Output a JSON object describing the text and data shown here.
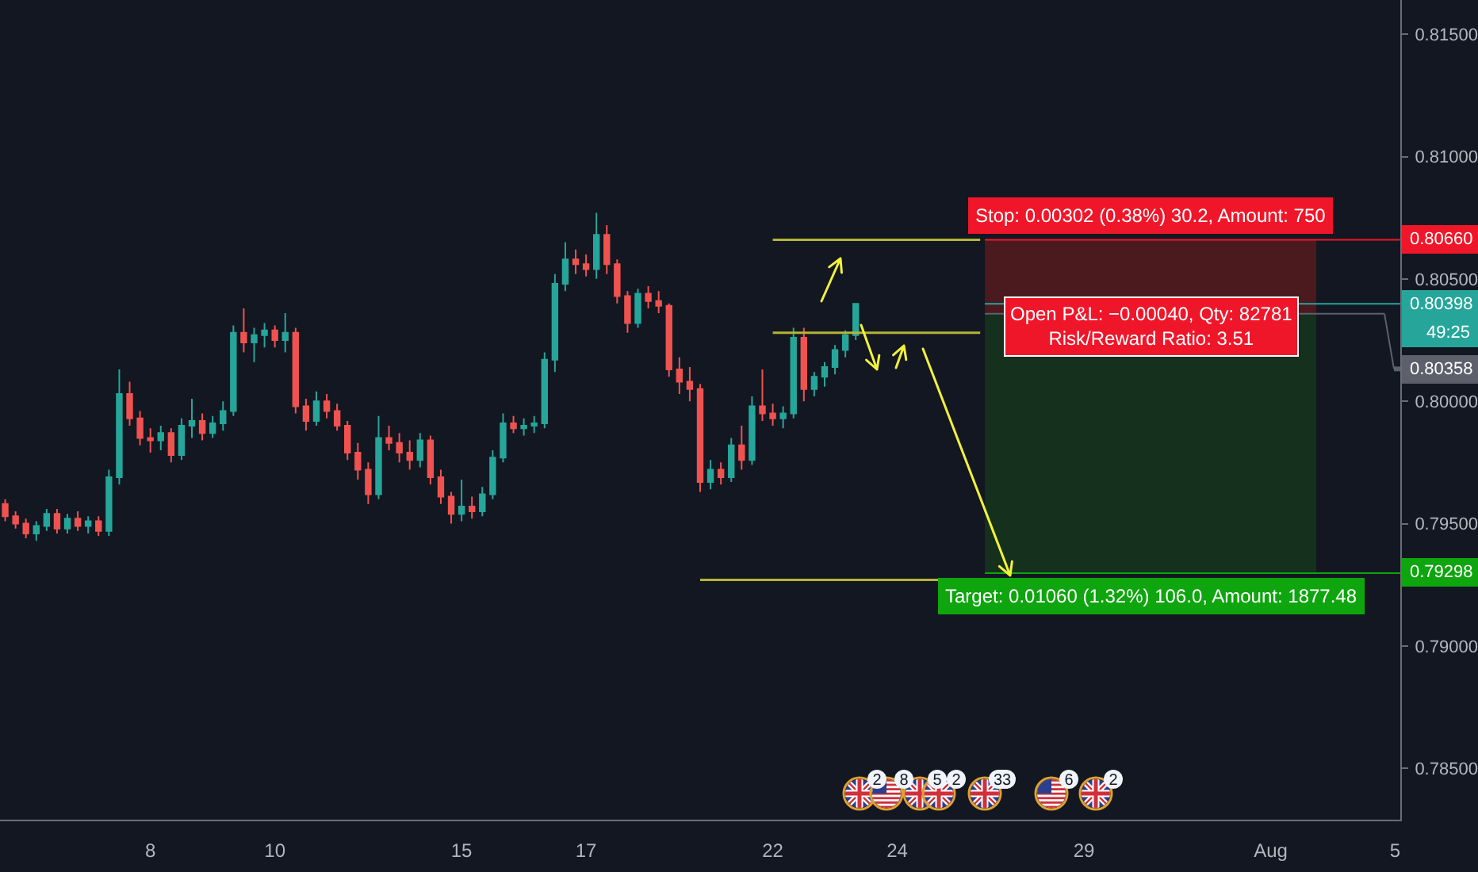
{
  "chart_data": {
    "type": "candlestick",
    "categories": [
      null,
      null,
      null,
      null,
      null,
      null,
      null,
      null,
      null,
      null,
      null,
      null,
      null,
      null,
      "8",
      null,
      null,
      null,
      null,
      null,
      null,
      null,
      null,
      null,
      null,
      null,
      "10",
      null,
      null,
      null,
      null,
      null,
      null,
      null,
      null,
      null,
      null,
      null,
      null,
      null,
      null,
      null,
      null,
      null,
      "15",
      null,
      null,
      null,
      null,
      null,
      null,
      null,
      null,
      null,
      null,
      null,
      "17",
      null,
      null,
      null,
      null,
      null,
      null,
      null,
      null,
      null,
      null,
      null,
      null,
      null,
      null,
      null,
      null,
      null,
      "22",
      null,
      null,
      null,
      null,
      null,
      null,
      null,
      null,
      null,
      null,
      null,
      "24",
      null,
      null,
      null,
      null,
      null,
      null,
      null,
      null,
      null,
      null,
      null,
      null,
      null,
      null,
      null,
      null,
      null,
      "29",
      null,
      null,
      null,
      null,
      null,
      null,
      null,
      null,
      null,
      null,
      null,
      null,
      null,
      null,
      null,
      null,
      null,
      "Aug",
      null,
      null,
      null,
      null,
      null,
      null,
      null,
      null,
      null,
      null,
      null,
      "5"
    ],
    "ohlc": [
      [
        0.7958,
        0.796,
        0.7951,
        0.7953
      ],
      [
        0.7953,
        0.7955,
        0.7948,
        0.795
      ],
      [
        0.795,
        0.7952,
        0.7944,
        0.7946
      ],
      [
        0.7946,
        0.7951,
        0.7943,
        0.7949
      ],
      [
        0.7949,
        0.7956,
        0.7947,
        0.7954
      ],
      [
        0.7954,
        0.7956,
        0.7946,
        0.7948
      ],
      [
        0.7948,
        0.7954,
        0.7946,
        0.7952
      ],
      [
        0.7952,
        0.7955,
        0.7947,
        0.7949
      ],
      [
        0.7949,
        0.7953,
        0.7946,
        0.7951
      ],
      [
        0.7951,
        0.7953,
        0.7945,
        0.7947
      ],
      [
        0.7947,
        0.7972,
        0.7945,
        0.7969
      ],
      [
        0.7969,
        0.8013,
        0.7966,
        0.8003
      ],
      [
        0.8003,
        0.8008,
        0.799,
        0.7993
      ],
      [
        0.7993,
        0.7996,
        0.7982,
        0.7985
      ],
      [
        0.7985,
        0.7989,
        0.7979,
        0.7984
      ],
      [
        0.7984,
        0.799,
        0.798,
        0.7987
      ],
      [
        0.7987,
        0.7989,
        0.7975,
        0.7978
      ],
      [
        0.7978,
        0.7993,
        0.7976,
        0.799
      ],
      [
        0.799,
        0.8001,
        0.7985,
        0.7992
      ],
      [
        0.7992,
        0.7995,
        0.7984,
        0.7987
      ],
      [
        0.7987,
        0.7994,
        0.7985,
        0.7991
      ],
      [
        0.7991,
        0.8,
        0.7988,
        0.7996
      ],
      [
        0.7996,
        0.8031,
        0.7994,
        0.8028
      ],
      [
        0.8028,
        0.8038,
        0.802,
        0.8024
      ],
      [
        0.8024,
        0.803,
        0.8016,
        0.8027
      ],
      [
        0.8027,
        0.8032,
        0.8022,
        0.8029
      ],
      [
        0.8029,
        0.8031,
        0.8022,
        0.8025
      ],
      [
        0.8025,
        0.8036,
        0.802,
        0.8028
      ],
      [
        0.8028,
        0.803,
        0.7995,
        0.7998
      ],
      [
        0.7998,
        0.8001,
        0.7988,
        0.7992
      ],
      [
        0.7992,
        0.8004,
        0.799,
        0.8
      ],
      [
        0.8,
        0.8003,
        0.7993,
        0.7996
      ],
      [
        0.7996,
        0.7999,
        0.7988,
        0.799
      ],
      [
        0.799,
        0.7992,
        0.7976,
        0.7979
      ],
      [
        0.7979,
        0.7983,
        0.7968,
        0.7972
      ],
      [
        0.7972,
        0.7975,
        0.7958,
        0.7962
      ],
      [
        0.7962,
        0.7994,
        0.796,
        0.7985
      ],
      [
        0.7985,
        0.799,
        0.798,
        0.7983
      ],
      [
        0.7983,
        0.7987,
        0.7975,
        0.7979
      ],
      [
        0.7979,
        0.7984,
        0.7972,
        0.7976
      ],
      [
        0.7976,
        0.7987,
        0.7973,
        0.7984
      ],
      [
        0.7984,
        0.7986,
        0.7966,
        0.7969
      ],
      [
        0.7969,
        0.7972,
        0.7958,
        0.7961
      ],
      [
        0.7961,
        0.7963,
        0.795,
        0.7954
      ],
      [
        0.7954,
        0.7968,
        0.7951,
        0.7957
      ],
      [
        0.7957,
        0.7961,
        0.7952,
        0.7955
      ],
      [
        0.7955,
        0.7965,
        0.7953,
        0.7962
      ],
      [
        0.7962,
        0.798,
        0.796,
        0.7977
      ],
      [
        0.7977,
        0.7995,
        0.7975,
        0.7991
      ],
      [
        0.7991,
        0.7994,
        0.7987,
        0.7989
      ],
      [
        0.7989,
        0.7993,
        0.7986,
        0.799
      ],
      [
        0.799,
        0.7994,
        0.7987,
        0.7991
      ],
      [
        0.7991,
        0.802,
        0.7989,
        0.8017
      ],
      [
        0.8017,
        0.8052,
        0.8012,
        0.8048
      ],
      [
        0.8048,
        0.8065,
        0.8045,
        0.8058
      ],
      [
        0.8058,
        0.8062,
        0.8052,
        0.8056
      ],
      [
        0.8056,
        0.806,
        0.8051,
        0.8054
      ],
      [
        0.8054,
        0.8077,
        0.805,
        0.8068
      ],
      [
        0.8068,
        0.8072,
        0.8052,
        0.8056
      ],
      [
        0.8056,
        0.8058,
        0.804,
        0.8043
      ],
      [
        0.8043,
        0.8045,
        0.8028,
        0.8032
      ],
      [
        0.8032,
        0.8046,
        0.803,
        0.8044
      ],
      [
        0.8044,
        0.8047,
        0.8038,
        0.8041
      ],
      [
        0.8041,
        0.8045,
        0.8036,
        0.8039
      ],
      [
        0.8039,
        0.804,
        0.801,
        0.8013
      ],
      [
        0.8013,
        0.8018,
        0.8003,
        0.8008
      ],
      [
        0.8008,
        0.8014,
        0.8,
        0.8005
      ],
      [
        0.8005,
        0.8007,
        0.7963,
        0.7967
      ],
      [
        0.7967,
        0.7976,
        0.7964,
        0.7972
      ],
      [
        0.7972,
        0.7975,
        0.7966,
        0.7969
      ],
      [
        0.7969,
        0.7985,
        0.7967,
        0.7982
      ],
      [
        0.7982,
        0.799,
        0.7972,
        0.7976
      ],
      [
        0.7976,
        0.8002,
        0.7974,
        0.7998
      ],
      [
        0.7998,
        0.8013,
        0.7992,
        0.7995
      ],
      [
        0.7995,
        0.7999,
        0.799,
        0.7993
      ],
      [
        0.7993,
        0.7998,
        0.7989,
        0.7995
      ],
      [
        0.7995,
        0.803,
        0.7993,
        0.8026
      ],
      [
        0.8026,
        0.803,
        0.8,
        0.8005
      ],
      [
        0.8005,
        0.8012,
        0.8002,
        0.801
      ],
      [
        0.801,
        0.8016,
        0.8006,
        0.8014
      ],
      [
        0.8014,
        0.8023,
        0.8011,
        0.8021
      ],
      [
        0.8021,
        0.8029,
        0.8018,
        0.8027
      ],
      [
        0.8027,
        0.80398,
        0.8025,
        0.80398
      ],
      null,
      null,
      null,
      null,
      null,
      null,
      null,
      null,
      null,
      null,
      null,
      null,
      null,
      null,
      null,
      null,
      null,
      null,
      null,
      null,
      null,
      null,
      null,
      null,
      null,
      null,
      null,
      null,
      null,
      null,
      null,
      null,
      null,
      null,
      null,
      null,
      null,
      null,
      null,
      null,
      null,
      null,
      null,
      null,
      null,
      null,
      null,
      null,
      null,
      null,
      null,
      null
    ],
    "colors": [
      "#ef5350",
      "#ef5350",
      "#ef5350",
      "#26a69a",
      "#26a69a",
      "#ef5350",
      "#26a69a",
      "#ef5350",
      "#26a69a",
      "#ef5350",
      "#26a69a",
      "#26a69a",
      "#ef5350",
      "#ef5350",
      "#ef5350",
      "#26a69a",
      "#ef5350",
      "#26a69a",
      "#26a69a",
      "#ef5350",
      "#26a69a",
      "#26a69a",
      "#26a69a",
      "#ef5350",
      "#26a69a",
      "#26a69a",
      "#ef5350",
      "#26a69a",
      "#ef5350",
      "#ef5350",
      "#26a69a",
      "#ef5350",
      "#ef5350",
      "#ef5350",
      "#ef5350",
      "#ef5350",
      "#26a69a",
      "#ef5350",
      "#ef5350",
      "#ef5350",
      "#26a69a",
      "#ef5350",
      "#ef5350",
      "#ef5350",
      "#26a69a",
      "#ef5350",
      "#26a69a",
      "#26a69a",
      "#26a69a",
      "#ef5350",
      "#26a69a",
      "#26a69a",
      "#26a69a",
      "#26a69a",
      "#26a69a",
      "#ef5350",
      "#ef5350",
      "#26a69a",
      "#ef5350",
      "#ef5350",
      "#ef5350",
      "#26a69a",
      "#ef5350",
      "#ef5350",
      "#ef5350",
      "#ef5350",
      "#ef5350",
      "#ef5350",
      "#26a69a",
      "#ef5350",
      "#26a69a",
      "#ef5350",
      "#26a69a",
      "#ef5350",
      "#ef5350",
      "#26a69a",
      "#26a69a",
      "#ef5350",
      "#26a69a",
      "#26a69a",
      "#26a69a",
      "#26a69a",
      "#26a69a",
      null,
      null,
      null,
      null,
      null,
      null,
      null,
      null,
      null,
      null,
      null,
      null,
      null,
      null,
      null,
      null,
      null,
      null,
      null,
      null,
      null,
      null,
      null,
      null,
      null,
      null,
      null,
      null,
      null,
      null,
      null,
      null,
      null,
      null,
      null,
      null,
      null,
      null,
      null,
      null,
      null,
      null,
      null,
      null,
      null,
      null,
      null,
      null,
      null,
      null,
      null,
      null
    ],
    "series": [
      {
        "type": "line",
        "color": "#b5b531",
        "values": [
          null,
          null,
          null,
          null,
          null,
          null,
          null,
          null,
          null,
          null,
          null,
          null,
          null,
          null,
          null,
          null,
          null,
          null,
          null,
          null,
          null,
          null,
          null,
          null,
          null,
          null,
          null,
          null,
          null,
          null,
          null,
          null,
          null,
          null,
          null,
          null,
          null,
          null,
          null,
          null,
          null,
          null,
          null,
          null,
          null,
          null,
          null,
          null,
          null,
          null,
          null,
          null,
          null,
          null,
          null,
          null,
          null,
          null,
          null,
          null,
          null,
          null,
          null,
          null,
          null,
          null,
          null,
          null,
          null,
          null,
          null,
          null,
          null,
          null,
          0.8066,
          0.8066,
          0.8066,
          0.8066,
          0.8066,
          0.8066,
          0.8066,
          0.8066,
          0.8066,
          0.8066,
          0.8066,
          0.8066,
          0.8066,
          0.8066,
          0.8066,
          0.8066,
          0.8066,
          0.8066,
          0.8066,
          0.8066,
          0.8066,
          null,
          null,
          null,
          null,
          null,
          null,
          null,
          null,
          null,
          null,
          null,
          null,
          null,
          null,
          null,
          null,
          null,
          null,
          null,
          null,
          null,
          null,
          null,
          null,
          null,
          null,
          null,
          null,
          null,
          null,
          null,
          null,
          null,
          null,
          null,
          null,
          null,
          null,
          null,
          null
        ]
      },
      {
        "type": "line",
        "color": "#b5b531",
        "values": [
          null,
          null,
          null,
          null,
          null,
          null,
          null,
          null,
          null,
          null,
          null,
          null,
          null,
          null,
          null,
          null,
          null,
          null,
          null,
          null,
          null,
          null,
          null,
          null,
          null,
          null,
          null,
          null,
          null,
          null,
          null,
          null,
          null,
          null,
          null,
          null,
          null,
          null,
          null,
          null,
          null,
          null,
          null,
          null,
          null,
          null,
          null,
          null,
          null,
          null,
          null,
          null,
          null,
          null,
          null,
          null,
          null,
          null,
          null,
          null,
          null,
          null,
          null,
          null,
          null,
          null,
          null,
          null,
          null,
          null,
          null,
          null,
          null,
          null,
          0.8028,
          0.8028,
          0.8028,
          0.8028,
          0.8028,
          0.8028,
          0.8028,
          0.8028,
          0.8028,
          0.8028,
          0.8028,
          0.8028,
          0.8028,
          0.8028,
          0.8028,
          0.8028,
          0.8028,
          0.8028,
          0.8028,
          0.8028,
          0.8028,
          null,
          null,
          null,
          null,
          null,
          null,
          null,
          null,
          null,
          null,
          null,
          null,
          null,
          null,
          null,
          null,
          null,
          null,
          null,
          null,
          null,
          null,
          null,
          null,
          null,
          null,
          null,
          null,
          null,
          null,
          null,
          null,
          null,
          null,
          null,
          null,
          null,
          null,
          null,
          null
        ]
      },
      {
        "type": "line",
        "color": "#b5b531",
        "values": [
          null,
          null,
          null,
          null,
          null,
          null,
          null,
          null,
          null,
          null,
          null,
          null,
          null,
          null,
          null,
          null,
          null,
          null,
          null,
          null,
          null,
          null,
          null,
          null,
          null,
          null,
          null,
          null,
          null,
          null,
          null,
          null,
          null,
          null,
          null,
          null,
          null,
          null,
          null,
          null,
          null,
          null,
          null,
          null,
          null,
          null,
          null,
          null,
          null,
          null,
          null,
          null,
          null,
          null,
          null,
          null,
          null,
          null,
          null,
          null,
          null,
          null,
          null,
          null,
          null,
          null,
          null,
          0.7927,
          0.7927,
          0.7927,
          0.7927,
          0.7927,
          0.7927,
          0.7927,
          0.7927,
          0.7927,
          0.7927,
          0.7927,
          0.7927,
          0.7927,
          0.7927,
          0.7927,
          0.7927,
          0.7927,
          0.7927,
          0.7927,
          0.7927,
          0.7927,
          0.7927,
          0.7927,
          0.7927,
          null,
          null,
          null,
          null,
          null,
          null,
          null,
          null,
          null,
          null,
          null,
          null,
          null,
          null,
          null,
          null,
          null,
          null,
          null,
          null,
          null,
          null,
          null,
          null,
          null,
          null,
          null,
          null,
          null,
          null,
          null,
          null,
          null,
          null,
          null,
          null,
          null,
          null,
          null,
          null,
          null,
          null,
          null,
          null
        ]
      }
    ],
    "ylim": [
      0.7829,
      0.8164
    ],
    "yticks": [
      {
        "value": 0.785,
        "label": "0.78500"
      },
      {
        "value": 0.79,
        "label": "0.79000"
      },
      {
        "value": 0.795,
        "label": "0.79500"
      },
      {
        "value": 0.8,
        "label": "0.80000"
      },
      {
        "value": 0.805,
        "label": "0.80500"
      },
      {
        "value": 0.81,
        "label": "0.81000"
      },
      {
        "value": 0.815,
        "label": "0.81500"
      }
    ],
    "bands": [
      {
        "axis": "y",
        "from": 0.80358,
        "to": 0.8066,
        "label": "Stop: 0.00302 (0.38%) 30.2, Amount: 750",
        "color": "#4a1a1f"
      },
      {
        "axis": "y",
        "from": 0.79298,
        "to": 0.80358,
        "label": "Target: 0.01060 (1.32%) 106.0, Amount: 1877.48",
        "color": "#15301c"
      }
    ],
    "ref_lines": [
      {
        "axis": "y",
        "value": 0.8066,
        "label": "0.80660",
        "color": "#f0162a"
      },
      {
        "axis": "y",
        "value": 0.80398,
        "label": "0.80398\n49:25",
        "color": "#26a69a"
      },
      {
        "axis": "y",
        "value": 0.80358,
        "label": "0.80358",
        "color": "#5d606b"
      },
      {
        "axis": "y",
        "value": 0.79298,
        "label": "0.79298",
        "color": "#0ea50e"
      }
    ],
    "annotations": [
      {
        "text": "Open P&L: −0.00040, Qty: 82781\nRisk/Reward Ratio: 3.51",
        "y": 0.80358
      },
      "2",
      "8",
      "5",
      "2",
      "33",
      "6",
      "2"
    ]
  }
}
